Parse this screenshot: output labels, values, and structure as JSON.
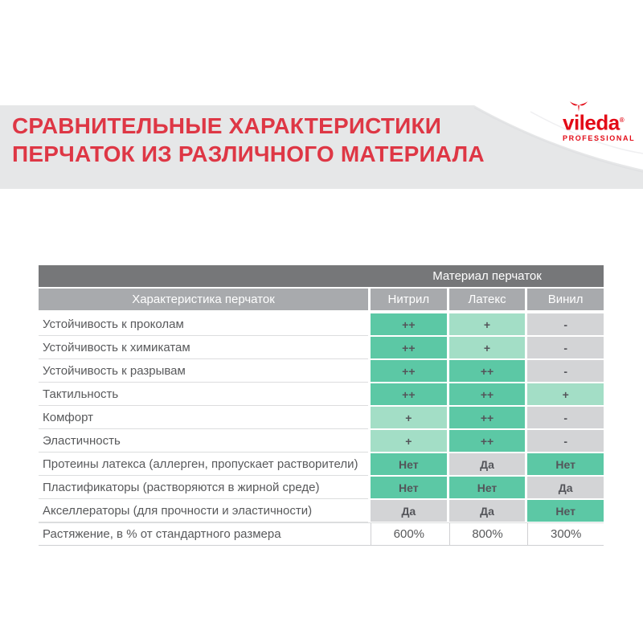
{
  "header": {
    "title_line1": "СРАВНИТЕЛЬНЫЕ ХАРАКТЕРИСТИКИ",
    "title_line2": "ПЕРЧАТОК ИЗ РАЗЛИЧНОГО МАТЕРИАЛА",
    "title_color": "#de3745",
    "band_color": "#e6e7e8",
    "logo": {
      "brand": "vileda",
      "registered": "®",
      "subtitle": "PROFESSIONAL",
      "color": "#e30b17"
    }
  },
  "table": {
    "top_header": "Материал перчаток",
    "left_header": "Характеристика перчаток",
    "columns": [
      "Нитрил",
      "Латекс",
      "Винил"
    ],
    "palette": {
      "teal": "#5cc8a5",
      "mint": "#a3dec6",
      "gray": "#d3d4d6",
      "header_dark": "#767779",
      "header_gray": "#a8aaad",
      "text": "#58595b"
    },
    "rows": [
      {
        "label": "Устойчивость к проколам",
        "values": [
          "++",
          "+",
          "-"
        ],
        "styles": [
          "teal",
          "mint",
          "gray"
        ]
      },
      {
        "label": "Устойчивость к химикатам",
        "values": [
          "++",
          "+",
          "-"
        ],
        "styles": [
          "teal",
          "mint",
          "gray"
        ]
      },
      {
        "label": "Устойчивость к разрывам",
        "values": [
          "++",
          "++",
          "-"
        ],
        "styles": [
          "teal",
          "teal",
          "gray"
        ]
      },
      {
        "label": "Тактильность",
        "values": [
          "++",
          "++",
          "+"
        ],
        "styles": [
          "teal",
          "teal",
          "mint"
        ]
      },
      {
        "label": "Комфорт",
        "values": [
          "+",
          "++",
          "-"
        ],
        "styles": [
          "mint",
          "teal",
          "gray"
        ]
      },
      {
        "label": "Эластичность",
        "values": [
          "+",
          "++",
          "-"
        ],
        "styles": [
          "mint",
          "teal",
          "gray"
        ]
      },
      {
        "label": "Протеины латекса (аллерген, пропускает растворители)",
        "values": [
          "Нет",
          "Да",
          "Нет"
        ],
        "styles": [
          "teal",
          "gray",
          "teal"
        ]
      },
      {
        "label": "Пластификаторы (растворяются в жирной среде)",
        "values": [
          "Нет",
          "Нет",
          "Да"
        ],
        "styles": [
          "teal",
          "teal",
          "gray"
        ]
      },
      {
        "label": "Акселлераторы (для прочности и эластичности)",
        "values": [
          "Да",
          "Да",
          "Нет"
        ],
        "styles": [
          "gray",
          "gray",
          "teal"
        ]
      },
      {
        "label": "Растяжение, в % от стандартного размера",
        "values": [
          "600%",
          "800%",
          "300%"
        ],
        "styles": [
          "plain",
          "plain",
          "plain"
        ]
      }
    ]
  }
}
